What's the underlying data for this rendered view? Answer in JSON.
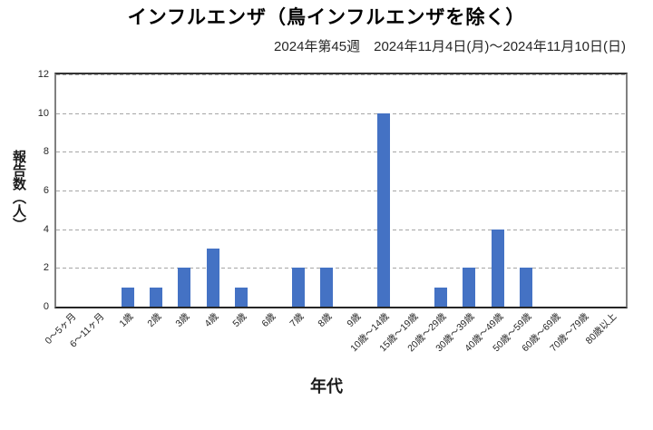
{
  "page": {
    "background": "#ffffff"
  },
  "chart_data": {
    "type": "bar",
    "title": "インフルエンザ（鳥インフルエンザを除く）",
    "subtitle": "2024年第45週　2024年11月4日(月)～2024年11月10日(日)",
    "xlabel": "年代",
    "ylabel": "報告数（人）",
    "categories": [
      "0～5ヶ月",
      "6～11ヶ月",
      "1歳",
      "2歳",
      "3歳",
      "4歳",
      "5歳",
      "6歳",
      "7歳",
      "8歳",
      "9歳",
      "10歳～14歳",
      "15歳～19歳",
      "20歳～29歳",
      "30歳～39歳",
      "40歳～49歳",
      "50歳～59歳",
      "60歳～69歳",
      "70歳～79歳",
      "80歳以上"
    ],
    "values": [
      0,
      0,
      1,
      1,
      2,
      3,
      1,
      0,
      2,
      2,
      0,
      10,
      0,
      1,
      2,
      4,
      2,
      0,
      0,
      0
    ],
    "ylim": [
      0,
      12
    ],
    "yticks": [
      0,
      2,
      4,
      6,
      8,
      10,
      12
    ],
    "grid": "horizontal-dashed",
    "legend": "none",
    "bar_color": "#4472C4",
    "gridline_color": "#A6A6A6",
    "axis_frame_color": "#808080",
    "axis_line_color": "#262626"
  }
}
